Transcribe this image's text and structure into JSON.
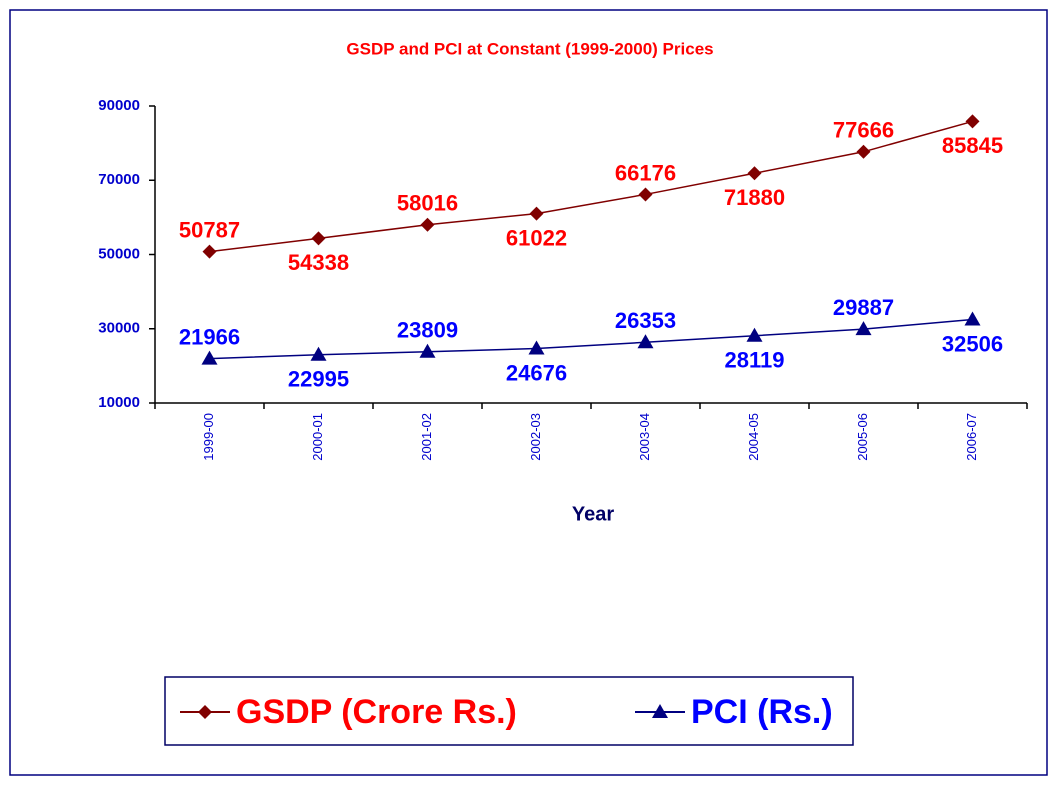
{
  "chart_data": {
    "type": "line",
    "title": "GSDP and PCI at  Constant (1999-2000) Prices",
    "x_label": "Year",
    "categories": [
      "1999-00",
      "2000-01",
      "2001-02",
      "2002-03",
      "2003-04",
      "2004-05",
      "2005-06",
      "2006-07"
    ],
    "series": [
      {
        "name": "GSDP (Crore Rs.)",
        "color": "#800000",
        "label_color": "#ff0000",
        "marker": "diamond",
        "values": [
          50787,
          54338,
          58016,
          61022,
          66176,
          71880,
          77666,
          85845
        ]
      },
      {
        "name": "PCI (Rs.)",
        "color": "#000080",
        "label_color": "#0000ff",
        "marker": "triangle",
        "values": [
          21966,
          22995,
          23809,
          24676,
          26353,
          28119,
          29887,
          32506
        ]
      }
    ],
    "ylim": [
      10000,
      90000
    ],
    "yticks": [
      10000,
      30000,
      50000,
      70000,
      90000
    ],
    "grid": false,
    "legend": "bottom"
  }
}
